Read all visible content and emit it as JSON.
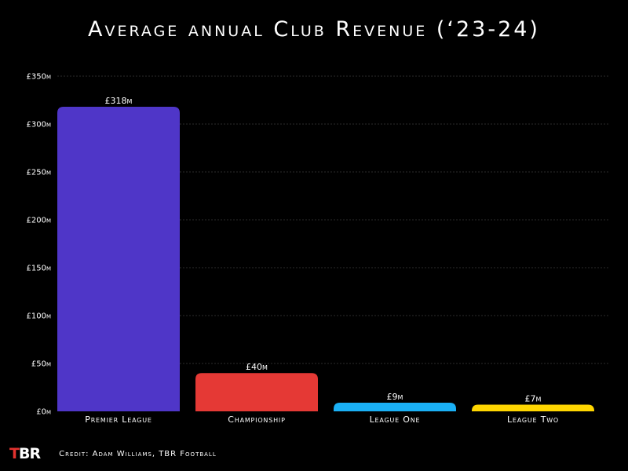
{
  "chart_data": {
    "type": "bar",
    "title": "Average annual Club Revenue (‘23-24)",
    "categories": [
      "Premier League",
      "Championship",
      "League One",
      "League Two"
    ],
    "values": [
      318,
      40,
      9,
      7
    ],
    "value_labels": [
      "£318m",
      "£40m",
      "£9m",
      "£7m"
    ],
    "colors": [
      "#4f36c8",
      "#e53935",
      "#1ab0f5",
      "#ffd600"
    ],
    "ylim": [
      0,
      350
    ],
    "yticks": [
      0,
      50,
      100,
      150,
      200,
      250,
      300,
      350
    ],
    "ytick_labels": [
      "£0m",
      "£50m",
      "£100m",
      "£150m",
      "£200m",
      "£250m",
      "£300m",
      "£350m"
    ],
    "xlabel": "",
    "ylabel": "",
    "grid": true
  },
  "logo": {
    "t": "T",
    "br": "BR"
  },
  "credit": "Credit: Adam Williams, TBR Football"
}
